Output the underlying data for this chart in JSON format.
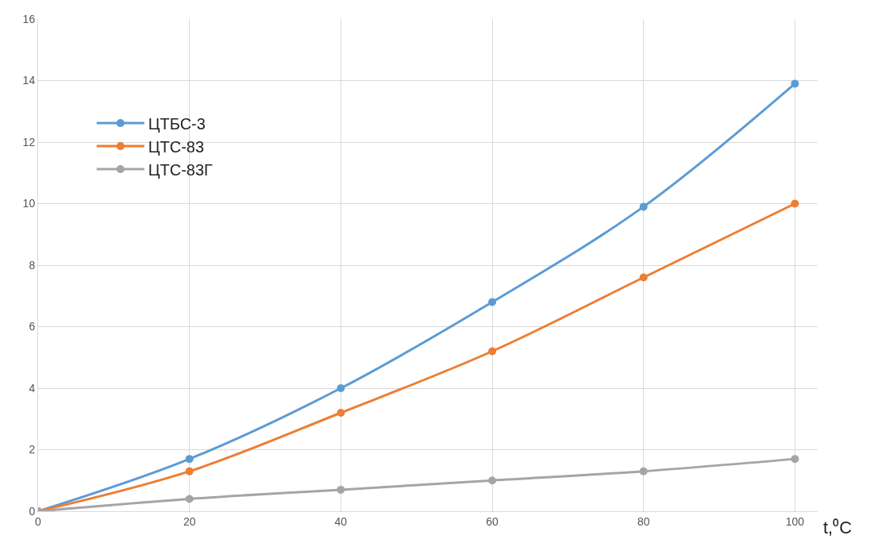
{
  "chart_data": {
    "type": "line",
    "xlabel": "t,⁰C",
    "x": [
      0,
      20,
      40,
      60,
      80,
      100
    ],
    "series": [
      {
        "name": "ЦТБС-3",
        "color": "#5b9bd5",
        "values": [
          0,
          1.7,
          4.0,
          6.8,
          9.9,
          13.9
        ]
      },
      {
        "name": "ЦТС-83",
        "color": "#ed7d31",
        "values": [
          0,
          1.3,
          3.2,
          5.2,
          7.6,
          10.0
        ]
      },
      {
        "name": "ЦТС-83Г",
        "color": "#a5a5a5",
        "values": [
          0,
          0.4,
          0.7,
          1.0,
          1.3,
          1.7
        ]
      }
    ],
    "xlim": [
      0,
      103
    ],
    "xticks": [
      0,
      20,
      40,
      60,
      80,
      100
    ],
    "ylim": [
      0,
      16
    ],
    "yticks": [
      0,
      2,
      4,
      6,
      8,
      10,
      12,
      14,
      16
    ],
    "grid": true,
    "legend": "top left",
    "marker": "circle",
    "line_style": "solid"
  }
}
